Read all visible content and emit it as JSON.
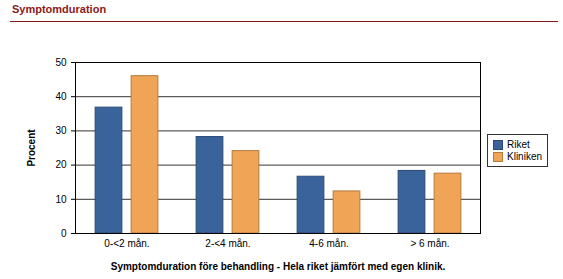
{
  "chart_data": {
    "type": "bar",
    "title": "Symptomduration",
    "xlabel": "Symptomduration före behandling - Hela riket jämfört med egen klinik.",
    "ylabel": "Procent",
    "categories": [
      "0-<2 mån.",
      "2-<4 mån.",
      "4-6 mån.",
      "> 6 mån."
    ],
    "series": [
      {
        "name": "Riket",
        "color": "#3a629b",
        "values": [
          36.8,
          28.2,
          16.6,
          18.3
        ]
      },
      {
        "name": "Kliniken",
        "color": "#f0a455",
        "values": [
          46.0,
          24.1,
          12.3,
          17.5
        ]
      }
    ],
    "ylim": [
      0,
      50
    ],
    "yticks": [
      0,
      10,
      20,
      30,
      40,
      50
    ],
    "grid": true,
    "legend": "right"
  }
}
